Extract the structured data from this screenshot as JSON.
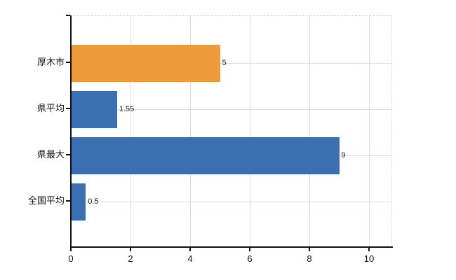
{
  "chart_data": {
    "type": "bar",
    "orientation": "horizontal",
    "title": "",
    "xlabel": "",
    "ylabel": "",
    "categories": [
      "厚木市",
      "県平均",
      "県最大",
      "全国平均"
    ],
    "values": [
      5,
      1.55,
      9,
      0.5
    ],
    "data_labels": [
      "5",
      "1.55",
      "9",
      "0.5"
    ],
    "bar_colors": [
      "#ED9B3D",
      "#3B6FB1",
      "#3B6FB1",
      "#3B6FB1"
    ],
    "xticks": [
      0,
      2,
      4,
      6,
      8,
      10
    ],
    "xtick_labels": [
      "0",
      "2",
      "4",
      "6",
      "8",
      "10"
    ],
    "xlim": [
      0,
      10.8
    ],
    "grid": true,
    "legend": false,
    "colors": {
      "background": "#FFFFFF",
      "gridline": "#D9DDD9",
      "axis": "#111111",
      "text": "#111111",
      "orange_bar": "#ED9B3D",
      "blue_bar": "#3B6FB1"
    }
  }
}
